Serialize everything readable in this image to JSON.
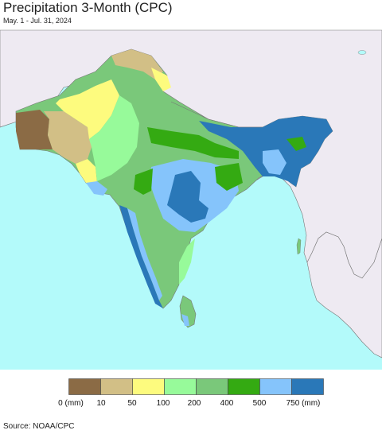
{
  "title": "Precipitation 3-Month (CPC)",
  "subtitle": "May. 1 - Jul. 31, 2024",
  "source": "Source: NOAA/CPC",
  "colors": {
    "ocean": "#b3fafa",
    "land_outside": "#eeeaf2",
    "border": "#777777"
  },
  "legend": {
    "colors": [
      "#8b6b45",
      "#d2bf86",
      "#fdfb7e",
      "#97fa9a",
      "#7ac87a",
      "#34aa12",
      "#85c4fb",
      "#2a78b8"
    ],
    "labels": [
      "0 (mm)",
      "10",
      "50",
      "100",
      "200",
      "400",
      "500",
      "750 (mm)"
    ]
  }
}
